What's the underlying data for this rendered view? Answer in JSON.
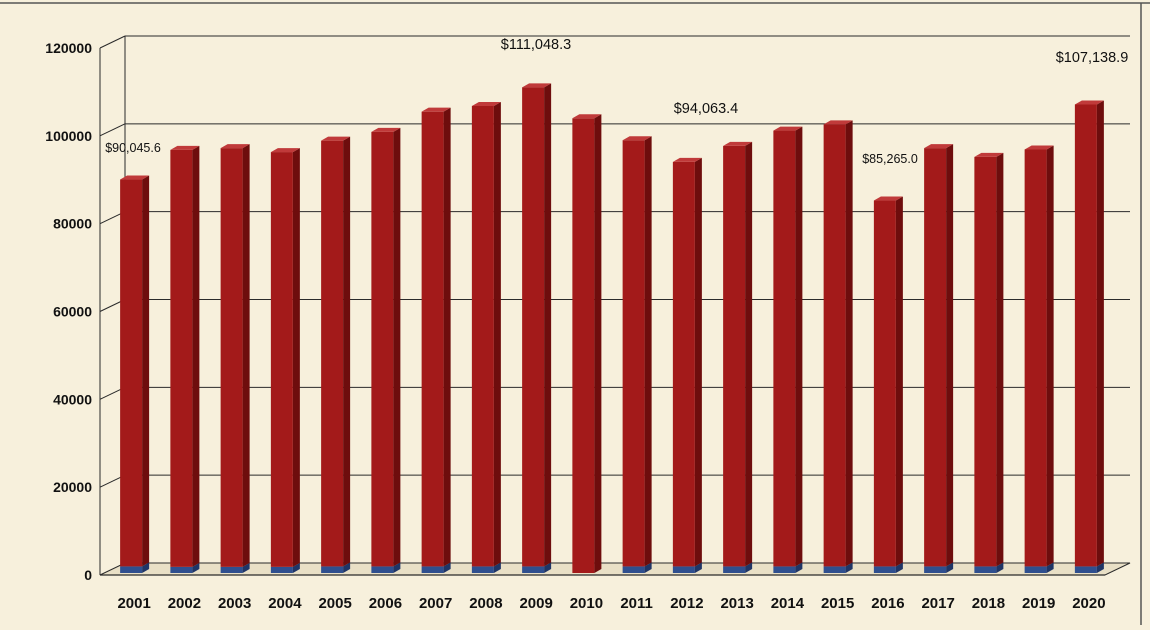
{
  "colors": {
    "background": "#f7f0dc",
    "bar_front": "#a31a1a",
    "bar_side": "#6e0d0d",
    "bar_top": "#c03a3a",
    "base_series": "#2f4f8f",
    "grid": "#2a2a2a"
  },
  "chart_data": {
    "type": "bar",
    "title": "",
    "xlabel": "",
    "ylabel": "",
    "ylim": [
      0,
      120000
    ],
    "yticks": [
      "0",
      "20000",
      "40000",
      "60000",
      "80000",
      "100000",
      "120000"
    ],
    "grid": true,
    "categories": [
      "2001",
      "2002",
      "2003",
      "2004",
      "2005",
      "2006",
      "2007",
      "2008",
      "2009",
      "2010",
      "2011",
      "2012",
      "2013",
      "2014",
      "2015",
      "2016",
      "2017",
      "2018",
      "2019",
      "2020"
    ],
    "series": [
      {
        "values": [
          90045.6,
          96800,
          97200,
          96300,
          98900,
          100900,
          105500,
          106800,
          111048.3,
          104000,
          99000,
          94063.4,
          97700,
          101200,
          102600,
          85265.0,
          97200,
          95200,
          96900,
          107138.9
        ]
      },
      {
        "values": [
          1500,
          1400,
          1400,
          1400,
          1500,
          1500,
          1500,
          1500,
          1500,
          0,
          1500,
          1500,
          1500,
          1500,
          1500,
          1500,
          1500,
          1500,
          1500,
          1500
        ]
      }
    ],
    "annotations": [
      {
        "category": "2001",
        "text": "$90,045.6"
      },
      {
        "category": "2009",
        "text": "$111,048.3"
      },
      {
        "category": "2012",
        "text": "$94,063.4"
      },
      {
        "category": "2016",
        "text": "$85,265.0"
      },
      {
        "category": "2020",
        "text": "$107,138.9"
      }
    ]
  }
}
